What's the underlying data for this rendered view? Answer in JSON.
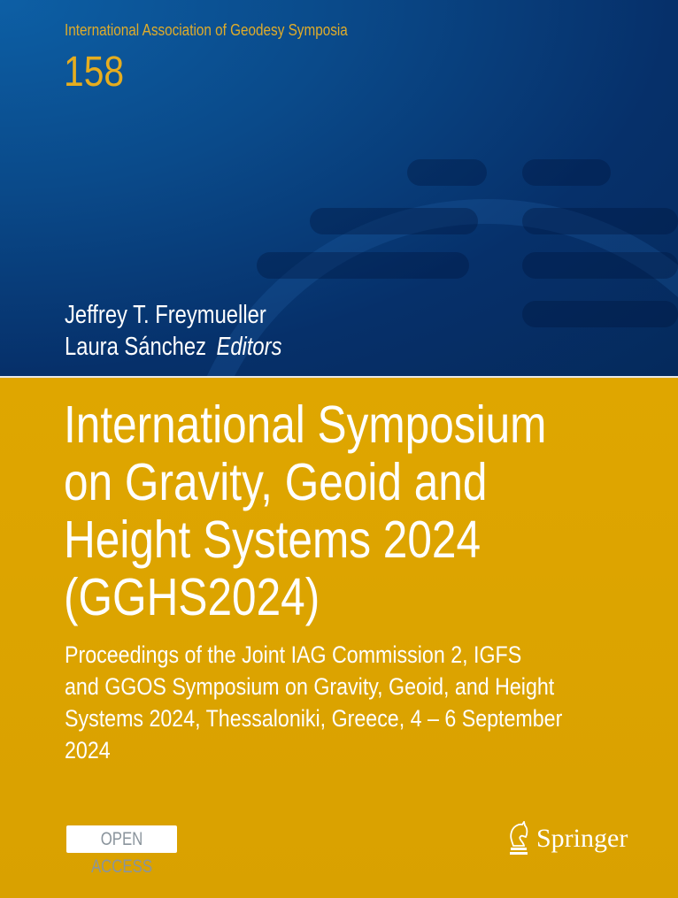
{
  "cover": {
    "series": "International Association of Geodesy Symposia",
    "volume": "158",
    "editors": [
      "Jeffrey T. Freymueller",
      "Laura Sánchez"
    ],
    "editors_label": "Editors",
    "title_lines": [
      "International Symposium",
      "on Gravity, Geoid and",
      "Height Systems 2024",
      "(GGHS2024)"
    ],
    "subtitle_lines": [
      "Proceedings of the Joint IAG Commission 2, IGFS",
      "and GGOS Symposium on Gravity, Geoid, and Height",
      "Systems 2024, Thessaloniki, Greece, 4 – 6 September",
      "2024"
    ],
    "badge": "OPEN ACCESS",
    "publisher": "Springer",
    "publisher_icon": "knight-horse-logo",
    "colors": {
      "blue": "#06306a",
      "yellow": "#dba300",
      "series_text": "#e0ac2a"
    }
  }
}
